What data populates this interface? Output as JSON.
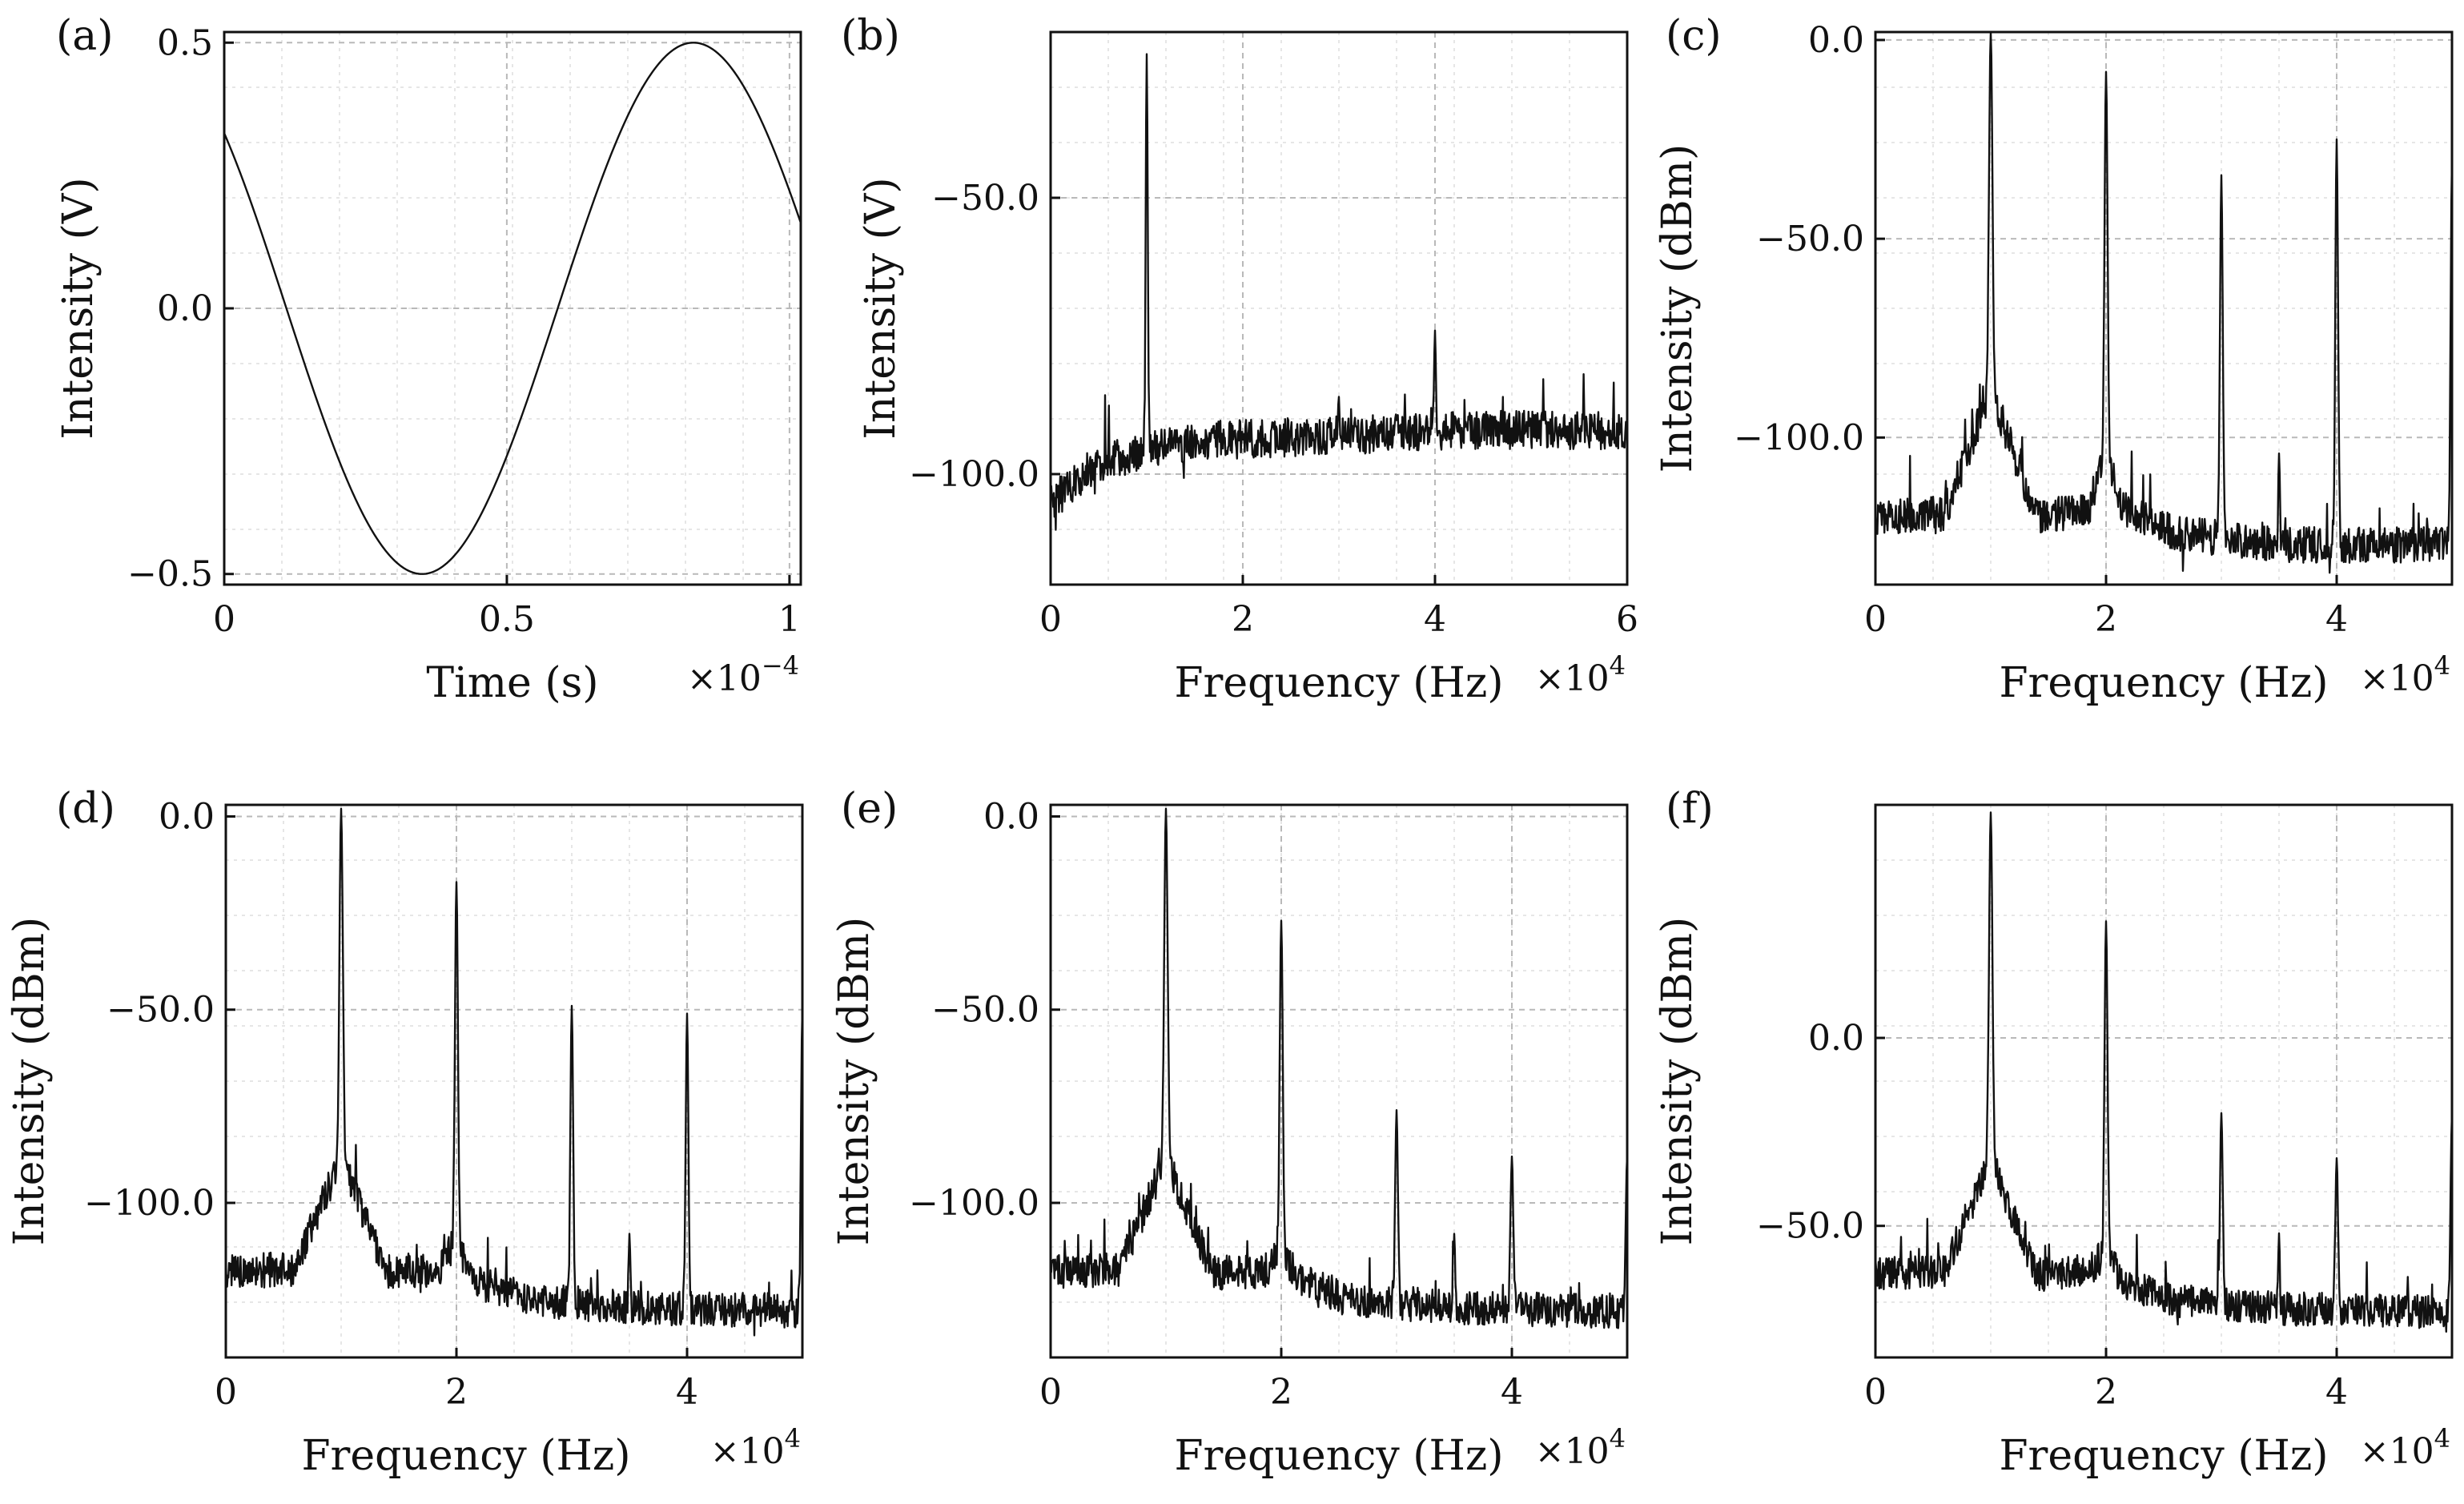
{
  "chart_data": [
    {
      "type": "line",
      "panel": "(a)",
      "xlabel": "Time (s)",
      "ylabel": "Intensity (V)",
      "x_multiplier": "×10",
      "x_multiplier_exp": "−4",
      "xlim": [
        0,
        1.02
      ],
      "ylim": [
        -0.52,
        0.52
      ],
      "xticks": [
        0,
        0.5,
        1
      ],
      "xtick_labels": [
        "0",
        "0.5",
        "1"
      ],
      "yticks": [
        -0.5,
        0,
        0.5
      ],
      "ytick_labels": [
        "−0.5",
        "0.0",
        "0.5"
      ],
      "grid": true,
      "series": [
        {
          "name": "signal",
          "form": "sinusoid",
          "amplitude": 0.5,
          "period": 0.96,
          "peak_at": 0.83,
          "x_start": 0,
          "x_end": 1.02
        }
      ]
    },
    {
      "type": "line",
      "panel": "(b)",
      "xlabel": "Frequency (Hz)",
      "ylabel": "Intensity (V)",
      "x_multiplier": "×10",
      "x_multiplier_exp": "4",
      "xlim": [
        0,
        6
      ],
      "ylim": [
        -120,
        -20
      ],
      "xticks": [
        0,
        2,
        4,
        6
      ],
      "xtick_labels": [
        "0",
        "2",
        "4",
        "6"
      ],
      "yticks": [
        -100,
        -50
      ],
      "ytick_labels": [
        "−100.0",
        "−50.0"
      ],
      "grid": true,
      "baseline": [
        [
          0,
          -105
        ],
        [
          0.5,
          -98
        ],
        [
          1.5,
          -94
        ],
        [
          3,
          -93
        ],
        [
          4.5,
          -92
        ],
        [
          6,
          -92
        ]
      ],
      "noise": 3.5,
      "peaks": [
        {
          "x": 1.0,
          "y": -24,
          "width": 0.018
        },
        {
          "x": 4.0,
          "y": -74,
          "width": 0.015
        },
        {
          "x": 3.0,
          "y": -86,
          "width": 0.012
        }
      ]
    },
    {
      "type": "line",
      "panel": "(c)",
      "xlabel": "Frequency (Hz)",
      "ylabel": "Intensity (dBm)",
      "x_multiplier": "×10",
      "x_multiplier_exp": "4",
      "xlim": [
        0,
        5
      ],
      "ylim": [
        -137,
        2
      ],
      "xticks": [
        0,
        2,
        4
      ],
      "xtick_labels": [
        "0",
        "2",
        "4"
      ],
      "yticks": [
        -100,
        -50,
        0
      ],
      "ytick_labels": [
        "−100.0",
        "−50.0",
        "0.0"
      ],
      "grid": true,
      "baseline": [
        [
          0,
          -120
        ],
        [
          0.6,
          -119
        ],
        [
          0.95,
          -92
        ],
        [
          1.0,
          -90
        ],
        [
          1.05,
          -92
        ],
        [
          1.4,
          -120
        ],
        [
          1.85,
          -118
        ],
        [
          2.0,
          -103
        ],
        [
          2.15,
          -118
        ],
        [
          2.6,
          -124
        ],
        [
          3.5,
          -127
        ],
        [
          5,
          -127
        ]
      ],
      "noise": 4.5,
      "peaks": [
        {
          "x": 1.0,
          "y": 2,
          "width": 0.025
        },
        {
          "x": 2.0,
          "y": -8,
          "width": 0.022
        },
        {
          "x": 3.0,
          "y": -34,
          "width": 0.02
        },
        {
          "x": 4.0,
          "y": -25,
          "width": 0.02
        },
        {
          "x": 3.5,
          "y": -104,
          "width": 0.012
        },
        {
          "x": 5.0,
          "y": -30,
          "width": 0.02
        }
      ]
    },
    {
      "type": "line",
      "panel": "(d)",
      "xlabel": "Frequency (Hz)",
      "ylabel": "Intensity (dBm)",
      "x_multiplier": "×10",
      "x_multiplier_exp": "4",
      "xlim": [
        0,
        5
      ],
      "ylim": [
        -140,
        3
      ],
      "xticks": [
        0,
        2,
        4
      ],
      "xtick_labels": [
        "0",
        "2",
        "4"
      ],
      "yticks": [
        -100,
        -50,
        0
      ],
      "ytick_labels": [
        "−100.0",
        "−50.0",
        "0.0"
      ],
      "grid": true,
      "baseline": [
        [
          0,
          -118
        ],
        [
          0.6,
          -117
        ],
        [
          0.95,
          -92
        ],
        [
          1.0,
          -90
        ],
        [
          1.05,
          -92
        ],
        [
          1.4,
          -118
        ],
        [
          1.85,
          -117
        ],
        [
          2.0,
          -110
        ],
        [
          2.15,
          -120
        ],
        [
          2.6,
          -125
        ],
        [
          3.5,
          -127
        ],
        [
          5,
          -128
        ]
      ],
      "noise": 4.5,
      "peaks": [
        {
          "x": 1.0,
          "y": 2,
          "width": 0.025
        },
        {
          "x": 2.0,
          "y": -17,
          "width": 0.022
        },
        {
          "x": 3.0,
          "y": -49,
          "width": 0.02
        },
        {
          "x": 4.0,
          "y": -51,
          "width": 0.02
        },
        {
          "x": 3.5,
          "y": -108,
          "width": 0.012
        },
        {
          "x": 5.0,
          "y": -50,
          "width": 0.02
        }
      ]
    },
    {
      "type": "line",
      "panel": "(e)",
      "xlabel": "Frequency (Hz)",
      "ylabel": "Intensity (dBm)",
      "x_multiplier": "×10",
      "x_multiplier_exp": "4",
      "xlim": [
        0,
        5
      ],
      "ylim": [
        -140,
        3
      ],
      "xticks": [
        0,
        2,
        4
      ],
      "xtick_labels": [
        "0",
        "2",
        "4"
      ],
      "yticks": [
        -100,
        -50,
        0
      ],
      "ytick_labels": [
        "−100.0",
        "−50.0",
        "0.0"
      ],
      "grid": true,
      "baseline": [
        [
          0,
          -118
        ],
        [
          0.6,
          -117
        ],
        [
          0.95,
          -92
        ],
        [
          1.0,
          -90
        ],
        [
          1.05,
          -92
        ],
        [
          1.4,
          -118
        ],
        [
          1.85,
          -118
        ],
        [
          2.0,
          -112
        ],
        [
          2.15,
          -120
        ],
        [
          2.6,
          -125
        ],
        [
          3.5,
          -127
        ],
        [
          5,
          -128
        ]
      ],
      "noise": 4.5,
      "peaks": [
        {
          "x": 1.0,
          "y": 2,
          "width": 0.025
        },
        {
          "x": 2.0,
          "y": -27,
          "width": 0.022
        },
        {
          "x": 3.0,
          "y": -76,
          "width": 0.02
        },
        {
          "x": 4.0,
          "y": -88,
          "width": 0.02
        },
        {
          "x": 3.5,
          "y": -108,
          "width": 0.012
        },
        {
          "x": 5.0,
          "y": -88,
          "width": 0.02
        }
      ]
    },
    {
      "type": "line",
      "panel": "(f)",
      "xlabel": "Frequency (Hz)",
      "ylabel": "Intensity (dBm)",
      "x_multiplier": "×10",
      "x_multiplier_exp": "4",
      "xlim": [
        0,
        5
      ],
      "ylim": [
        -85,
        62
      ],
      "xticks": [
        0,
        2,
        4
      ],
      "xtick_labels": [
        "0",
        "2",
        "4"
      ],
      "yticks": [
        -50,
        0
      ],
      "ytick_labels": [
        "−50.0",
        "0.0"
      ],
      "grid": true,
      "baseline": [
        [
          0,
          -63
        ],
        [
          0.6,
          -62
        ],
        [
          0.95,
          -36
        ],
        [
          1.0,
          -34
        ],
        [
          1.05,
          -36
        ],
        [
          1.4,
          -63
        ],
        [
          1.85,
          -62
        ],
        [
          2.0,
          -57
        ],
        [
          2.15,
          -65
        ],
        [
          2.6,
          -70
        ],
        [
          3.5,
          -72
        ],
        [
          5,
          -73
        ]
      ],
      "noise": 4.5,
      "peaks": [
        {
          "x": 1.0,
          "y": 60,
          "width": 0.025
        },
        {
          "x": 2.0,
          "y": 31,
          "width": 0.022
        },
        {
          "x": 3.0,
          "y": -20,
          "width": 0.02
        },
        {
          "x": 4.0,
          "y": -32,
          "width": 0.02
        },
        {
          "x": 3.5,
          "y": -52,
          "width": 0.012
        },
        {
          "x": 5.0,
          "y": -20,
          "width": 0.02
        }
      ]
    }
  ]
}
